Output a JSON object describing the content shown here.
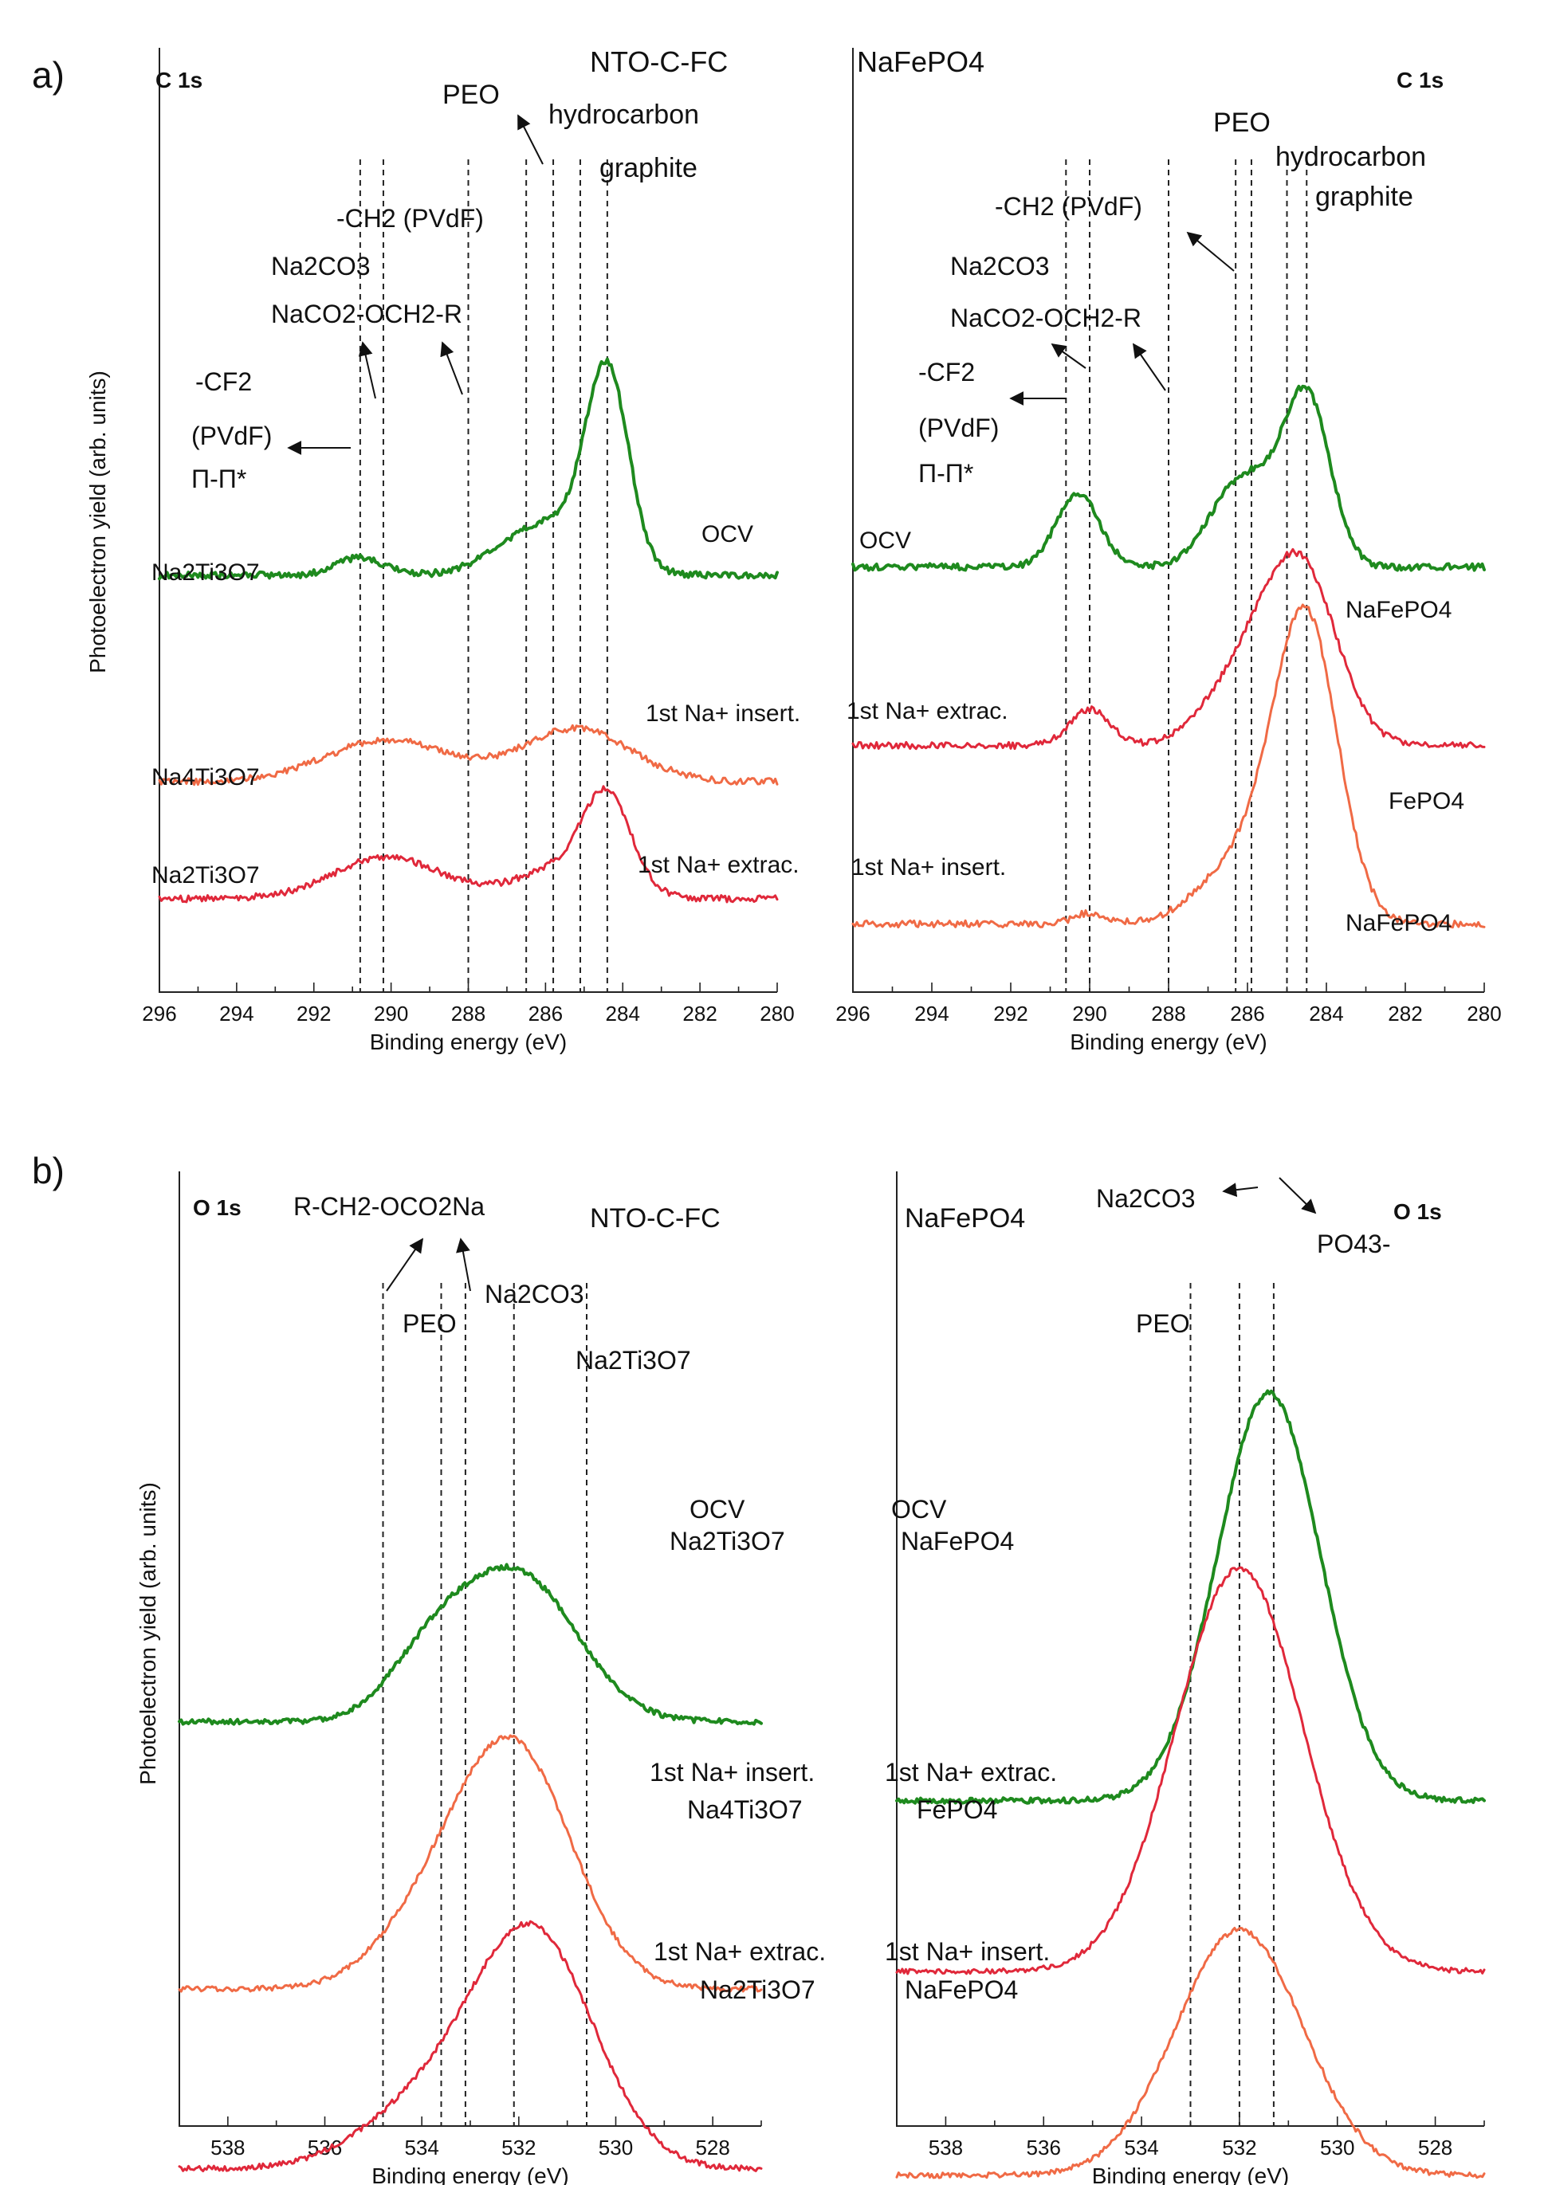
{
  "figure": {
    "panel_a_label": "a)",
    "panel_b_label": "b)",
    "ylabel": "Photoelectron yield (arb. units)"
  },
  "chart_data": [
    {
      "id": "a_left",
      "type": "line",
      "title": "NTO-C-FC",
      "core_level": "C 1s",
      "xlabel": "Binding energy (eV)",
      "xlim": [
        296,
        280
      ],
      "xticks": [
        296,
        294,
        292,
        290,
        288,
        286,
        284,
        282,
        280
      ],
      "x_reversed": true,
      "reference_lines": [
        290.8,
        290.2,
        288.0,
        286.5,
        285.8,
        285.1,
        284.4
      ],
      "series": [
        {
          "name": "OCV",
          "phase": "Na2Ti3O7",
          "color": "#1e8a1e",
          "width": 4,
          "peaks": [
            [
              284.4,
              3.4,
              0.55
            ],
            [
              285.9,
              0.95,
              1.2
            ],
            [
              290.8,
              0.32,
              0.6
            ]
          ],
          "baseline": 0.5,
          "offset": 6.4
        },
        {
          "name": "1st Na+ insert.",
          "phase": "Na4Ti3O7",
          "color": "#f06a45",
          "width": 3,
          "peaks": [
            [
              285.2,
              0.95,
              1.4
            ],
            [
              290.1,
              0.75,
              1.6
            ]
          ],
          "baseline": 0.2,
          "offset": 3.0
        },
        {
          "name": "1st Na+ extrac.",
          "phase": "Na2Ti3O7",
          "color": "#e0283a",
          "width": 3,
          "peaks": [
            [
              284.4,
              1.55,
              0.6
            ],
            [
              285.4,
              0.6,
              1.2
            ],
            [
              290.1,
              0.75,
              1.4
            ]
          ],
          "baseline": 0.2,
          "offset": 0.9
        }
      ]
    },
    {
      "id": "a_right",
      "type": "line",
      "title": "NaFePO4",
      "core_level": "C 1s",
      "xlabel": "Binding energy (eV)",
      "xlim": [
        296,
        280
      ],
      "xticks": [
        296,
        294,
        292,
        290,
        288,
        286,
        284,
        282,
        280
      ],
      "x_reversed": true,
      "reference_lines": [
        290.6,
        290.0,
        288.0,
        286.3,
        285.9,
        285.0,
        284.5
      ],
      "series": [
        {
          "name": "OCV",
          "phase": "NaFePO4",
          "color": "#1e8a1e",
          "width": 4,
          "peaks": [
            [
              284.5,
              3.0,
              0.6
            ],
            [
              286.1,
              1.6,
              0.8
            ],
            [
              290.3,
              1.3,
              0.55
            ]
          ],
          "baseline": 0.35,
          "offset": 6.7
        },
        {
          "name": "1st Na+ extrac.",
          "phase": "FePO4",
          "color": "#e0283a",
          "width": 3,
          "peaks": [
            [
              284.6,
              2.9,
              0.9
            ],
            [
              286.0,
              1.3,
              1.0
            ],
            [
              290.0,
              0.65,
              0.5
            ]
          ],
          "baseline": 0.25,
          "offset": 3.6
        },
        {
          "name": "1st Na+ insert.",
          "phase": "NaFePO4",
          "color": "#f06a45",
          "width": 3,
          "peaks": [
            [
              284.5,
              5.2,
              0.8
            ],
            [
              286.0,
              1.2,
              1.1
            ],
            [
              290.0,
              0.2,
              0.4
            ]
          ],
          "baseline": 0.15,
          "offset": 0.5
        }
      ]
    },
    {
      "id": "b_left",
      "type": "line",
      "title": "NTO-C-FC",
      "core_level": "O 1s",
      "xlabel": "Binding energy (eV)",
      "xlim": [
        539,
        527
      ],
      "xticks": [
        538,
        536,
        534,
        532,
        530,
        528
      ],
      "x_reversed": true,
      "reference_lines": [
        534.8,
        533.6,
        533.1,
        532.1,
        530.6
      ],
      "series": [
        {
          "name": "OCV",
          "phase": "Na2Ti3O7",
          "color": "#1e8a1e",
          "width": 4,
          "peaks": [
            [
              532.0,
              3.3,
              1.2
            ],
            [
              533.8,
              1.3,
              0.9
            ]
          ],
          "baseline": 0.3,
          "offset": 8.2
        },
        {
          "name": "1st Na+ insert.",
          "phase": "Na4Ti3O7",
          "color": "#f06a45",
          "width": 3,
          "peaks": [
            [
              532.1,
              5.4,
              1.2
            ],
            [
              533.9,
              1.2,
              1.1
            ]
          ],
          "baseline": 0.2,
          "offset": 2.2
        },
        {
          "name": "1st Na+ extrac.",
          "phase": "Na2Ti3O7",
          "color": "#e0283a",
          "width": 3,
          "peaks": [
            [
              531.7,
              5.3,
              1.25
            ],
            [
              534.0,
              1.3,
              1.3
            ]
          ],
          "baseline": 0.2,
          "offset": -1.9
        }
      ]
    },
    {
      "id": "b_right",
      "type": "line",
      "title": "NaFePO4",
      "core_level": "O 1s",
      "xlabel": "Binding energy (eV)",
      "xlim": [
        539,
        527
      ],
      "xticks": [
        538,
        536,
        534,
        532,
        530,
        528
      ],
      "x_reversed": true,
      "reference_lines": [
        533.0,
        532.0,
        531.3
      ],
      "series": [
        {
          "name": "OCV",
          "phase": "NaFePO4",
          "color": "#1e8a1e",
          "width": 4,
          "peaks": [
            [
              531.4,
              9.3,
              1.05
            ]
          ],
          "baseline": 0.2,
          "offset": 6.5
        },
        {
          "name": "1st Na+ extrac.",
          "phase": "FePO4",
          "color": "#e0283a",
          "width": 3,
          "peaks": [
            [
              532.0,
              9.2,
              1.3
            ]
          ],
          "baseline": 0.2,
          "offset": 2.6
        },
        {
          "name": "1st Na+ insert.",
          "phase": "NaFePO4",
          "color": "#f06a45",
          "width": 3,
          "peaks": [
            [
              532.0,
              5.6,
              1.3
            ]
          ],
          "baseline": 0.15,
          "offset": -2.0
        }
      ]
    }
  ],
  "annotations": {
    "a_left": {
      "core": "C 1s",
      "sample": "NTO-C-FC",
      "peo": "PEO",
      "hydrocarbon": "hydrocarbon",
      "graphite": "graphite",
      "ch2": "-CH2 (PVdF)",
      "na2co3": "Na2CO3",
      "naco2": "NaCO2-OCH2-R",
      "cf2": "-CF2",
      "pvdf": "(PVdF)",
      "pipi": "Π-Π*",
      "ocv": "OCV",
      "phase_ocv": "Na2Ti3O7",
      "insert": "1st Na+ insert.",
      "phase_insert": "Na4Ti3O7",
      "extrac": "1st Na+ extrac.",
      "phase_extrac": "Na2Ti3O7"
    },
    "a_right": {
      "core": "C 1s",
      "sample": "NaFePO4",
      "peo": "PEO",
      "hydrocarbon": "hydrocarbon",
      "graphite": "graphite",
      "ch2": "-CH2 (PVdF)",
      "na2co3": "Na2CO3",
      "naco2": "NaCO2-OCH2-R",
      "cf2": "-CF2",
      "pvdf": "(PVdF)",
      "pipi": "Π-Π*",
      "ocv": "OCV",
      "phase_ocv": "NaFePO4",
      "extrac": "1st Na+ extrac.",
      "phase_extrac": "FePO4",
      "insert": "1st Na+ insert.",
      "phase_insert": "NaFePO4"
    },
    "b_left": {
      "core": "O 1s",
      "sample": "NTO-C-FC",
      "rch2": "R-CH2-OCO2Na",
      "peo": "PEO",
      "na2co3": "Na2CO3",
      "nto": "Na2Ti3O7",
      "ocv": "OCV",
      "phase_ocv": "Na2Ti3O7",
      "insert": "1st Na+ insert.",
      "phase_insert": "Na4Ti3O7",
      "extrac": "1st Na+ extrac.",
      "phase_extrac": "Na2Ti3O7"
    },
    "b_right": {
      "core": "O 1s",
      "sample": "NaFePO4",
      "na2co3": "Na2CO3",
      "po4": "PO43-",
      "peo": "PEO",
      "ocv": "OCV",
      "phase_ocv": "NaFePO4",
      "extrac": "1st Na+ extrac.",
      "phase_extrac": "FePO4",
      "insert": "1st Na+ insert.",
      "phase_insert": "NaFePO4"
    }
  }
}
